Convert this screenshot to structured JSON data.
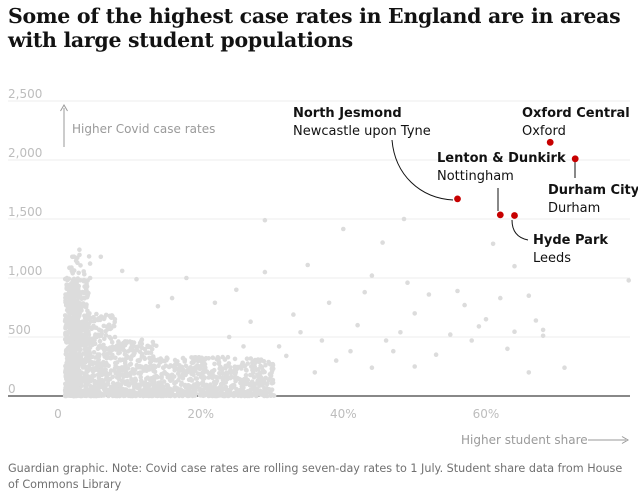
{
  "title": "Some of the highest case rates in England are in areas with large student populations",
  "footer": "Guardian graphic. Note: Covid case rates are rolling seven-day rates to 1 July. Student share data from House of Commons Library",
  "colors": {
    "background_points": "#dcdcdc",
    "highlight_points": "#c70000",
    "text": "#121212",
    "muted": "#9a9a9a",
    "grid": "#ececec"
  },
  "chart_data": {
    "type": "scatter",
    "title": "Some of the highest case rates in England are in areas with large student populations",
    "xlabel": "Higher student share",
    "ylabel": "Higher Covid case rates",
    "xlim": [
      0,
      80
    ],
    "ylim": [
      0,
      2500
    ],
    "x_ticks": [
      0,
      20,
      40,
      60
    ],
    "x_tick_labels": [
      "0",
      "20%",
      "40%",
      "60%"
    ],
    "y_ticks": [
      0,
      500,
      1000,
      1500,
      2000,
      2500
    ],
    "y_tick_labels": [
      "0",
      "500",
      "1,000",
      "1,500",
      "2,000",
      "2,500"
    ],
    "grid": "horizontal",
    "highlighted": [
      {
        "name": "North Jesmond",
        "place": "Newcastle upon Tyne",
        "x": 56,
        "y": 1670
      },
      {
        "name": "Lenton & Dunkirk",
        "place": "Nottingham",
        "x": 62,
        "y": 1535
      },
      {
        "name": "Hyde Park",
        "place": "Leeds",
        "x": 64,
        "y": 1530
      },
      {
        "name": "Oxford Central",
        "place": "Oxford",
        "x": 69,
        "y": 2150
      },
      {
        "name": "Durham City",
        "place": "Durham",
        "x": 72.5,
        "y": 2010
      }
    ],
    "outliers": [
      {
        "x": 29,
        "y": 1490
      },
      {
        "x": 48.5,
        "y": 1500
      },
      {
        "x": 40,
        "y": 1415
      },
      {
        "x": 45.5,
        "y": 1300
      },
      {
        "x": 61,
        "y": 1290
      },
      {
        "x": 64,
        "y": 1100
      },
      {
        "x": 29,
        "y": 1050
      },
      {
        "x": 35,
        "y": 1110
      },
      {
        "x": 44,
        "y": 1020
      },
      {
        "x": 49,
        "y": 960
      },
      {
        "x": 52,
        "y": 860
      },
      {
        "x": 56,
        "y": 890
      },
      {
        "x": 57,
        "y": 770
      },
      {
        "x": 62,
        "y": 830
      },
      {
        "x": 66,
        "y": 850
      },
      {
        "x": 80,
        "y": 980
      },
      {
        "x": 43,
        "y": 880
      },
      {
        "x": 38,
        "y": 790
      },
      {
        "x": 50,
        "y": 700
      },
      {
        "x": 33,
        "y": 690
      },
      {
        "x": 60,
        "y": 650
      },
      {
        "x": 67,
        "y": 640
      },
      {
        "x": 68,
        "y": 560
      },
      {
        "x": 64,
        "y": 545
      },
      {
        "x": 68,
        "y": 510
      },
      {
        "x": 59,
        "y": 590
      },
      {
        "x": 55,
        "y": 520
      },
      {
        "x": 48,
        "y": 540
      },
      {
        "x": 46,
        "y": 470
      },
      {
        "x": 42,
        "y": 600
      },
      {
        "x": 41,
        "y": 380
      },
      {
        "x": 37,
        "y": 470
      },
      {
        "x": 34,
        "y": 540
      },
      {
        "x": 31,
        "y": 420
      },
      {
        "x": 39,
        "y": 300
      },
      {
        "x": 53,
        "y": 350
      },
      {
        "x": 58,
        "y": 470
      },
      {
        "x": 63,
        "y": 400
      },
      {
        "x": 66,
        "y": 200
      },
      {
        "x": 71,
        "y": 240
      },
      {
        "x": 44,
        "y": 240
      },
      {
        "x": 50,
        "y": 250
      },
      {
        "x": 36,
        "y": 200
      },
      {
        "x": 30,
        "y": 260
      },
      {
        "x": 27,
        "y": 630
      },
      {
        "x": 25,
        "y": 900
      },
      {
        "x": 24,
        "y": 500
      },
      {
        "x": 22,
        "y": 790
      },
      {
        "x": 18,
        "y": 1000
      },
      {
        "x": 16,
        "y": 830
      },
      {
        "x": 14,
        "y": 760
      },
      {
        "x": 11,
        "y": 990
      },
      {
        "x": 9,
        "y": 1060
      },
      {
        "x": 6,
        "y": 1180
      },
      {
        "x": 3,
        "y": 1240
      },
      {
        "x": 2,
        "y": 1180
      },
      {
        "x": 4.5,
        "y": 1000
      },
      {
        "x": 32,
        "y": 340
      },
      {
        "x": 26,
        "y": 420
      },
      {
        "x": 47,
        "y": 380
      }
    ]
  }
}
